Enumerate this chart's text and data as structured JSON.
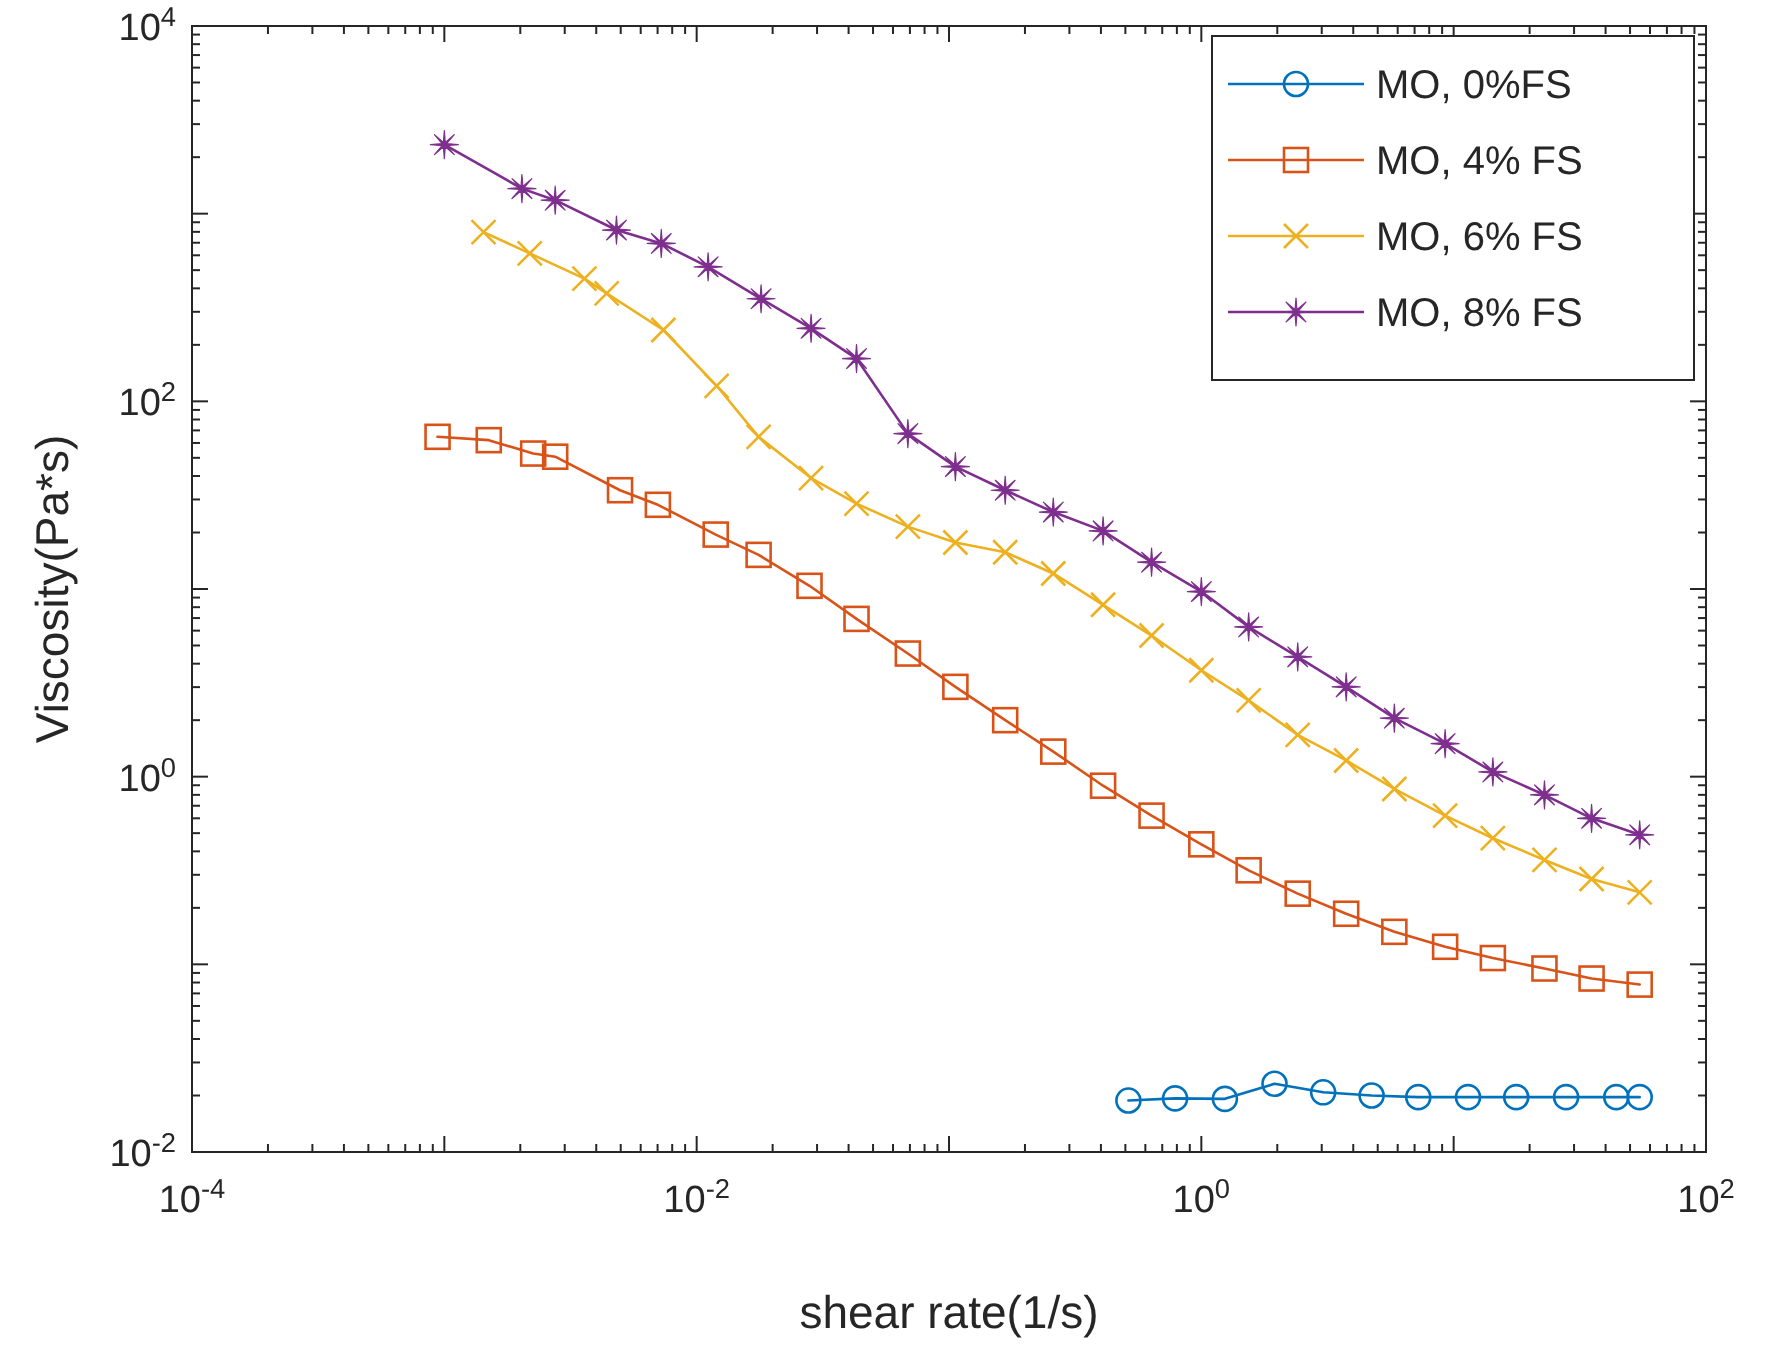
{
  "chart_data": {
    "type": "line",
    "xlabel": "shear rate(1/s)",
    "ylabel": "Viscosity(Pa*s)",
    "log": "xy",
    "grid": false,
    "legend": "top right",
    "xlim": [
      0.0001,
      100
    ],
    "ylim": [
      0.01,
      10000
    ],
    "xticks": [
      {
        "value": 0.0001,
        "label": "10$^{-4}$"
      },
      {
        "value": 0.01,
        "label": "10$^{-2}$"
      },
      {
        "value": 1,
        "label": "10$^{0}$"
      },
      {
        "value": 100,
        "label": "10$^{2}$"
      }
    ],
    "yticks": [
      {
        "value": 0.01,
        "label": "10$^{-2}$"
      },
      {
        "value": 1,
        "label": "10$^{0}$"
      },
      {
        "value": 100,
        "label": "10$^{2}$"
      },
      {
        "value": 10000,
        "label": "10$^{4}$"
      }
    ],
    "series": [
      {
        "name": "MO, 0%FS",
        "color": "#0072bd",
        "marker": "circle",
        "x": [
          0.514,
          0.787,
          1.24,
          1.95,
          3.04,
          4.73,
          7.24,
          11.4,
          17.7,
          27.9,
          44.1,
          54.6
        ],
        "values": [
          0.0188,
          0.0193,
          0.0192,
          0.0231,
          0.0208,
          0.02,
          0.0196,
          0.0196,
          0.0196,
          0.0196,
          0.0196,
          0.0196
        ]
      },
      {
        "name": "MO, 4% FS",
        "color": "#d95319",
        "marker": "square",
        "x": [
          0.00094,
          0.0015,
          0.00225,
          0.00275,
          0.00497,
          0.00702,
          0.0119,
          0.0176,
          0.028,
          0.043,
          0.0687,
          0.106,
          0.167,
          0.259,
          0.408,
          0.635,
          1.0,
          1.54,
          2.41,
          3.75,
          5.82,
          9.25,
          14.3,
          22.9,
          35.2,
          54.6
        ],
        "values": [
          64.7,
          62.1,
          52.7,
          50.7,
          33.6,
          28.1,
          19.5,
          15.2,
          10.4,
          6.93,
          4.53,
          3.01,
          2.0,
          1.36,
          0.895,
          0.62,
          0.436,
          0.317,
          0.238,
          0.186,
          0.149,
          0.124,
          0.108,
          0.095,
          0.084,
          0.078
        ]
      },
      {
        "name": "MO, 6% FS",
        "color": "#edb120",
        "marker": "cross",
        "x": [
          0.00143,
          0.00218,
          0.00359,
          0.0044,
          0.00738,
          0.012,
          0.0176,
          0.0284,
          0.043,
          0.0687,
          0.106,
          0.167,
          0.259,
          0.408,
          0.635,
          1.0,
          1.54,
          2.41,
          3.75,
          5.82,
          9.25,
          14.3,
          22.9,
          35.2,
          54.6
        ],
        "values": [
          798,
          614,
          451,
          376,
          240,
          121,
          64.7,
          39.0,
          28.5,
          21.5,
          17.7,
          15.7,
          12.1,
          8.24,
          5.65,
          3.69,
          2.55,
          1.67,
          1.22,
          0.86,
          0.62,
          0.47,
          0.36,
          0.285,
          0.242
        ]
      },
      {
        "name": "MO, 8% FS",
        "color": "#7e2f8e",
        "marker": "star",
        "x": [
          0.001,
          0.00203,
          0.00275,
          0.00481,
          0.00724,
          0.0111,
          0.018,
          0.0284,
          0.043,
          0.0687,
          0.106,
          0.167,
          0.259,
          0.408,
          0.635,
          1.0,
          1.54,
          2.41,
          3.75,
          5.82,
          9.25,
          14.3,
          22.9,
          35.2,
          54.6
        ],
        "values": [
          2333,
          1360,
          1180,
          818,
          694,
          521,
          352,
          245,
          169,
          67.3,
          44.9,
          33.6,
          25.7,
          20.4,
          13.9,
          9.69,
          6.28,
          4.35,
          3.01,
          2.05,
          1.5,
          1.06,
          0.8,
          0.6,
          0.49
        ]
      }
    ]
  }
}
